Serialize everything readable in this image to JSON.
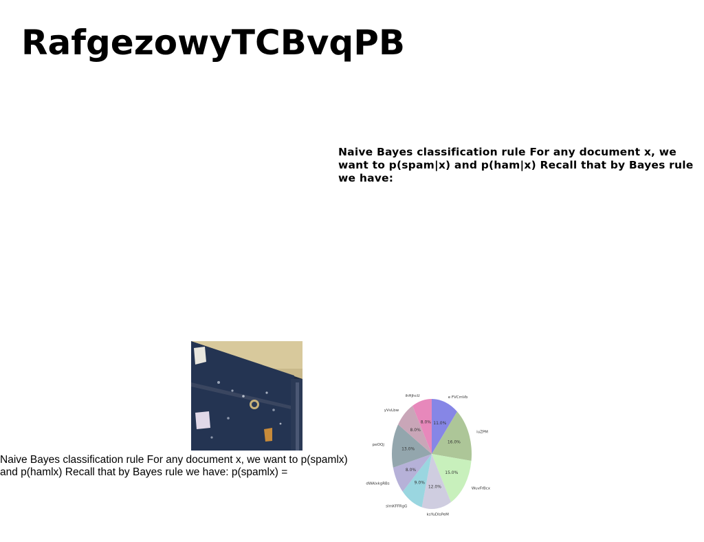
{
  "document": {
    "title": "RafgezowyTCBvqPB",
    "paragraph_bold": "Naive Bayes classification rule For any document x, we want to p(spam|x) and p(ham|x) Recall that by Bayes rule we have:",
    "paragraph_plain": "Naive Bayes classification rule For any document x, we want to p(spamlx) and p(hamlx) Recall that by Bayes rule we have: p(spamlx) ="
  },
  "photo": {
    "icon": "corkboard-photo",
    "colors": {
      "wall": "#c8b88a",
      "board": "#1f2d44",
      "frame": "#2a3a55"
    }
  },
  "chart_data": {
    "type": "pie",
    "start_angle": 90,
    "direction": "clockwise",
    "slices": [
      {
        "label": "e FVCmVb",
        "value": 11.0,
        "pct_label": "11.0%",
        "color": "#8686e6"
      },
      {
        "label": "iuZPM",
        "value": 16.0,
        "pct_label": "16.0%",
        "color": "#adc698"
      },
      {
        "label": "WuvFrBcx",
        "value": 15.0,
        "pct_label": "15.0%",
        "color": "#c8f0bc"
      },
      {
        "label": "ksYuDIsPeM",
        "value": 12.0,
        "pct_label": "12.0%",
        "color": "#cfcde0"
      },
      {
        "label": "slmKFFRgG",
        "value": 9.0,
        "pct_label": "9.0%",
        "color": "#9ad6e0"
      },
      {
        "label": "dWAlxkgRBs",
        "value": 8.0,
        "pct_label": "8.0%",
        "color": "#b6b1d8"
      },
      {
        "label": "peOQj",
        "value": 13.0,
        "pct_label": "13.0%",
        "color": "#93a6ad"
      },
      {
        "label": "yVvLbw",
        "value": 8.0,
        "pct_label": "8.0%",
        "color": "#c9a6b8"
      },
      {
        "label": "ihHjhcU",
        "value": 8.0,
        "pct_label": "8.0%",
        "color": "#e788bb"
      }
    ]
  }
}
